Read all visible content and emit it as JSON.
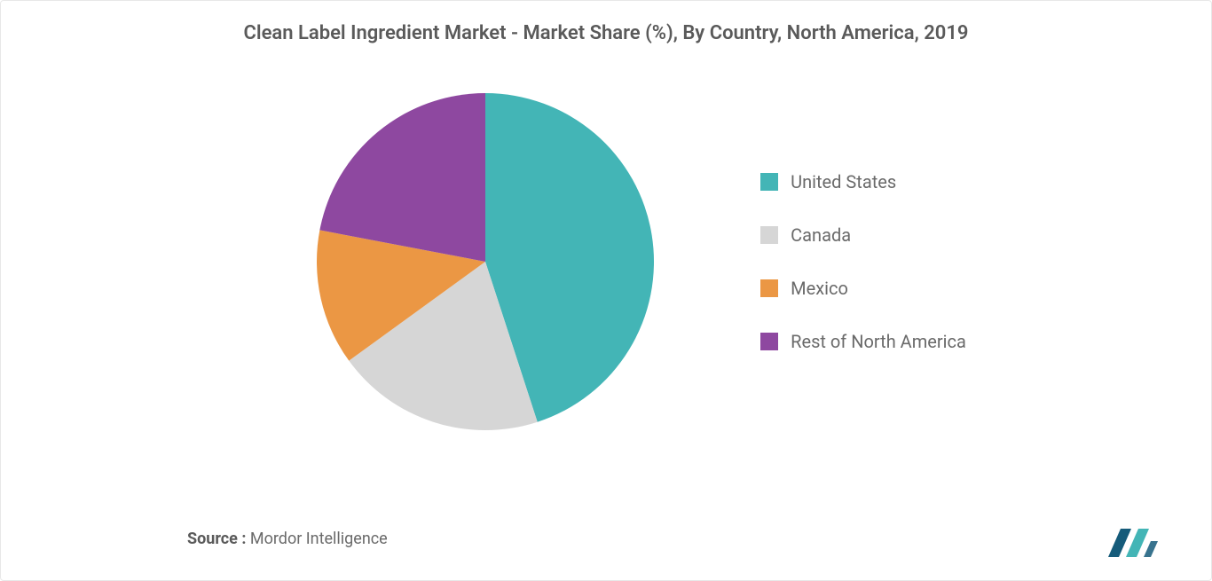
{
  "chart": {
    "type": "pie",
    "title": "Clean Label Ingredient Market - Market Share (%), By Country, North America, 2019",
    "title_fontsize": 22,
    "title_color": "#5a5a5a",
    "title_fontweight": 600,
    "background_color": "#ffffff",
    "pie_diameter": 380,
    "start_angle_deg": 0,
    "slices": [
      {
        "label": "United States",
        "value": 45,
        "color": "#43b5b6"
      },
      {
        "label": "Canada",
        "value": 20,
        "color": "#d6d6d6"
      },
      {
        "label": "Mexico",
        "value": 13,
        "color": "#eb9744"
      },
      {
        "label": "Rest of North America",
        "value": 22,
        "color": "#8e48a0"
      }
    ],
    "legend": {
      "position": "right",
      "swatch_size": 20,
      "gap": 36,
      "label_fontsize": 20,
      "label_color": "#6a6a6a"
    }
  },
  "footer": {
    "source_label": "Source :",
    "source_value": "Mordor Intelligence",
    "fontsize": 18,
    "color": "#6a6a6a"
  },
  "logo": {
    "bars": [
      {
        "color": "#155b7a"
      },
      {
        "color": "#43b5b6"
      }
    ]
  }
}
